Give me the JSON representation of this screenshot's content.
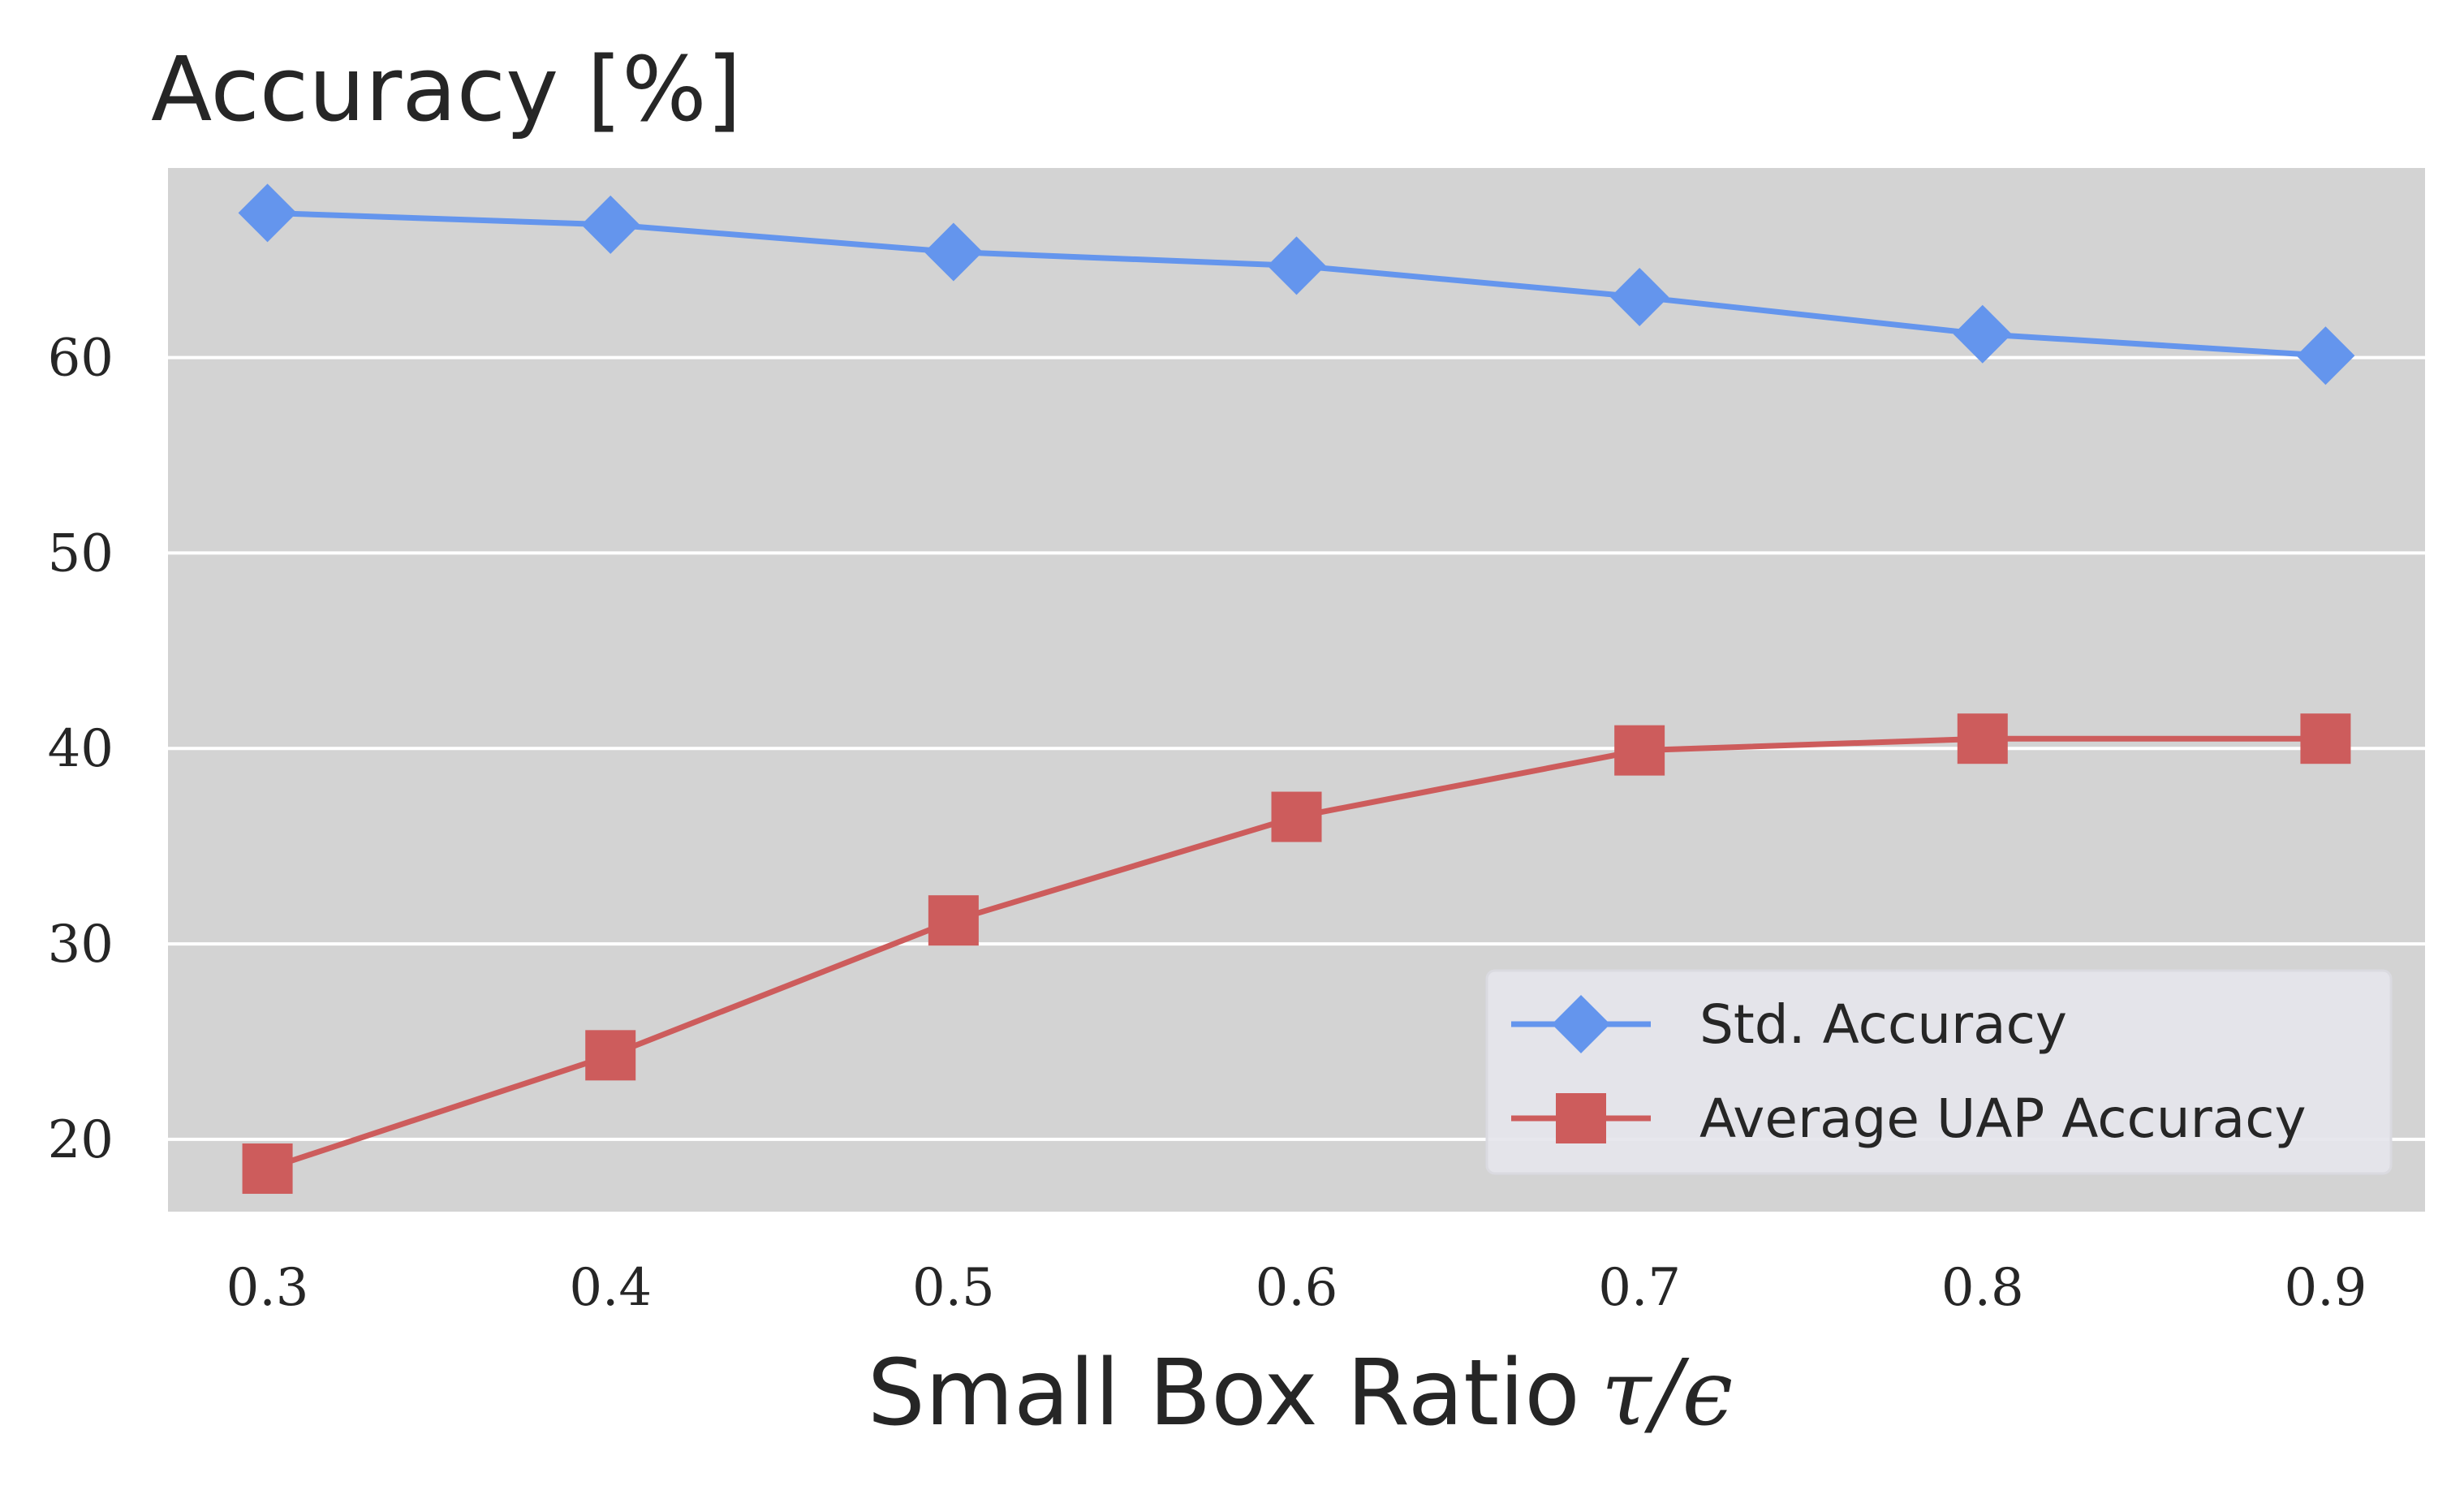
{
  "chart_data": {
    "type": "line",
    "title": "Accuracy [%]",
    "xlabel": "Small Box Ratio",
    "xlabel_math": "τ/ϵ",
    "ylabel": "",
    "x": [
      0.3,
      0.4,
      0.5,
      0.6,
      0.7,
      0.8,
      0.9
    ],
    "x_tick_labels": [
      "0.3",
      "0.4",
      "0.5",
      "0.6",
      "0.7",
      "0.8",
      "0.9"
    ],
    "xlim": [
      0.271,
      0.929
    ],
    "ylim": [
      16.3,
      69.7
    ],
    "y_ticks": [
      20,
      30,
      40,
      50,
      60
    ],
    "y_tick_labels": [
      "20",
      "30",
      "40",
      "50",
      "60"
    ],
    "grid": true,
    "legend_position": "lower-right",
    "series": [
      {
        "name": "Std. Accuracy",
        "marker": "diamond",
        "color": "#6495ED",
        "values": [
          67.4,
          66.8,
          65.4,
          64.7,
          63.1,
          61.2,
          60.1
        ]
      },
      {
        "name": "Average UAP Accuracy",
        "marker": "square",
        "color": "#CD5C5C",
        "values": [
          18.5,
          24.3,
          31.2,
          36.5,
          39.9,
          40.5,
          40.5
        ]
      }
    ]
  },
  "colors": {
    "plot_background": "#D3D3D3",
    "grid": "#FFFFFF",
    "legend_background": "#E5E5EC",
    "text": "#262626"
  }
}
